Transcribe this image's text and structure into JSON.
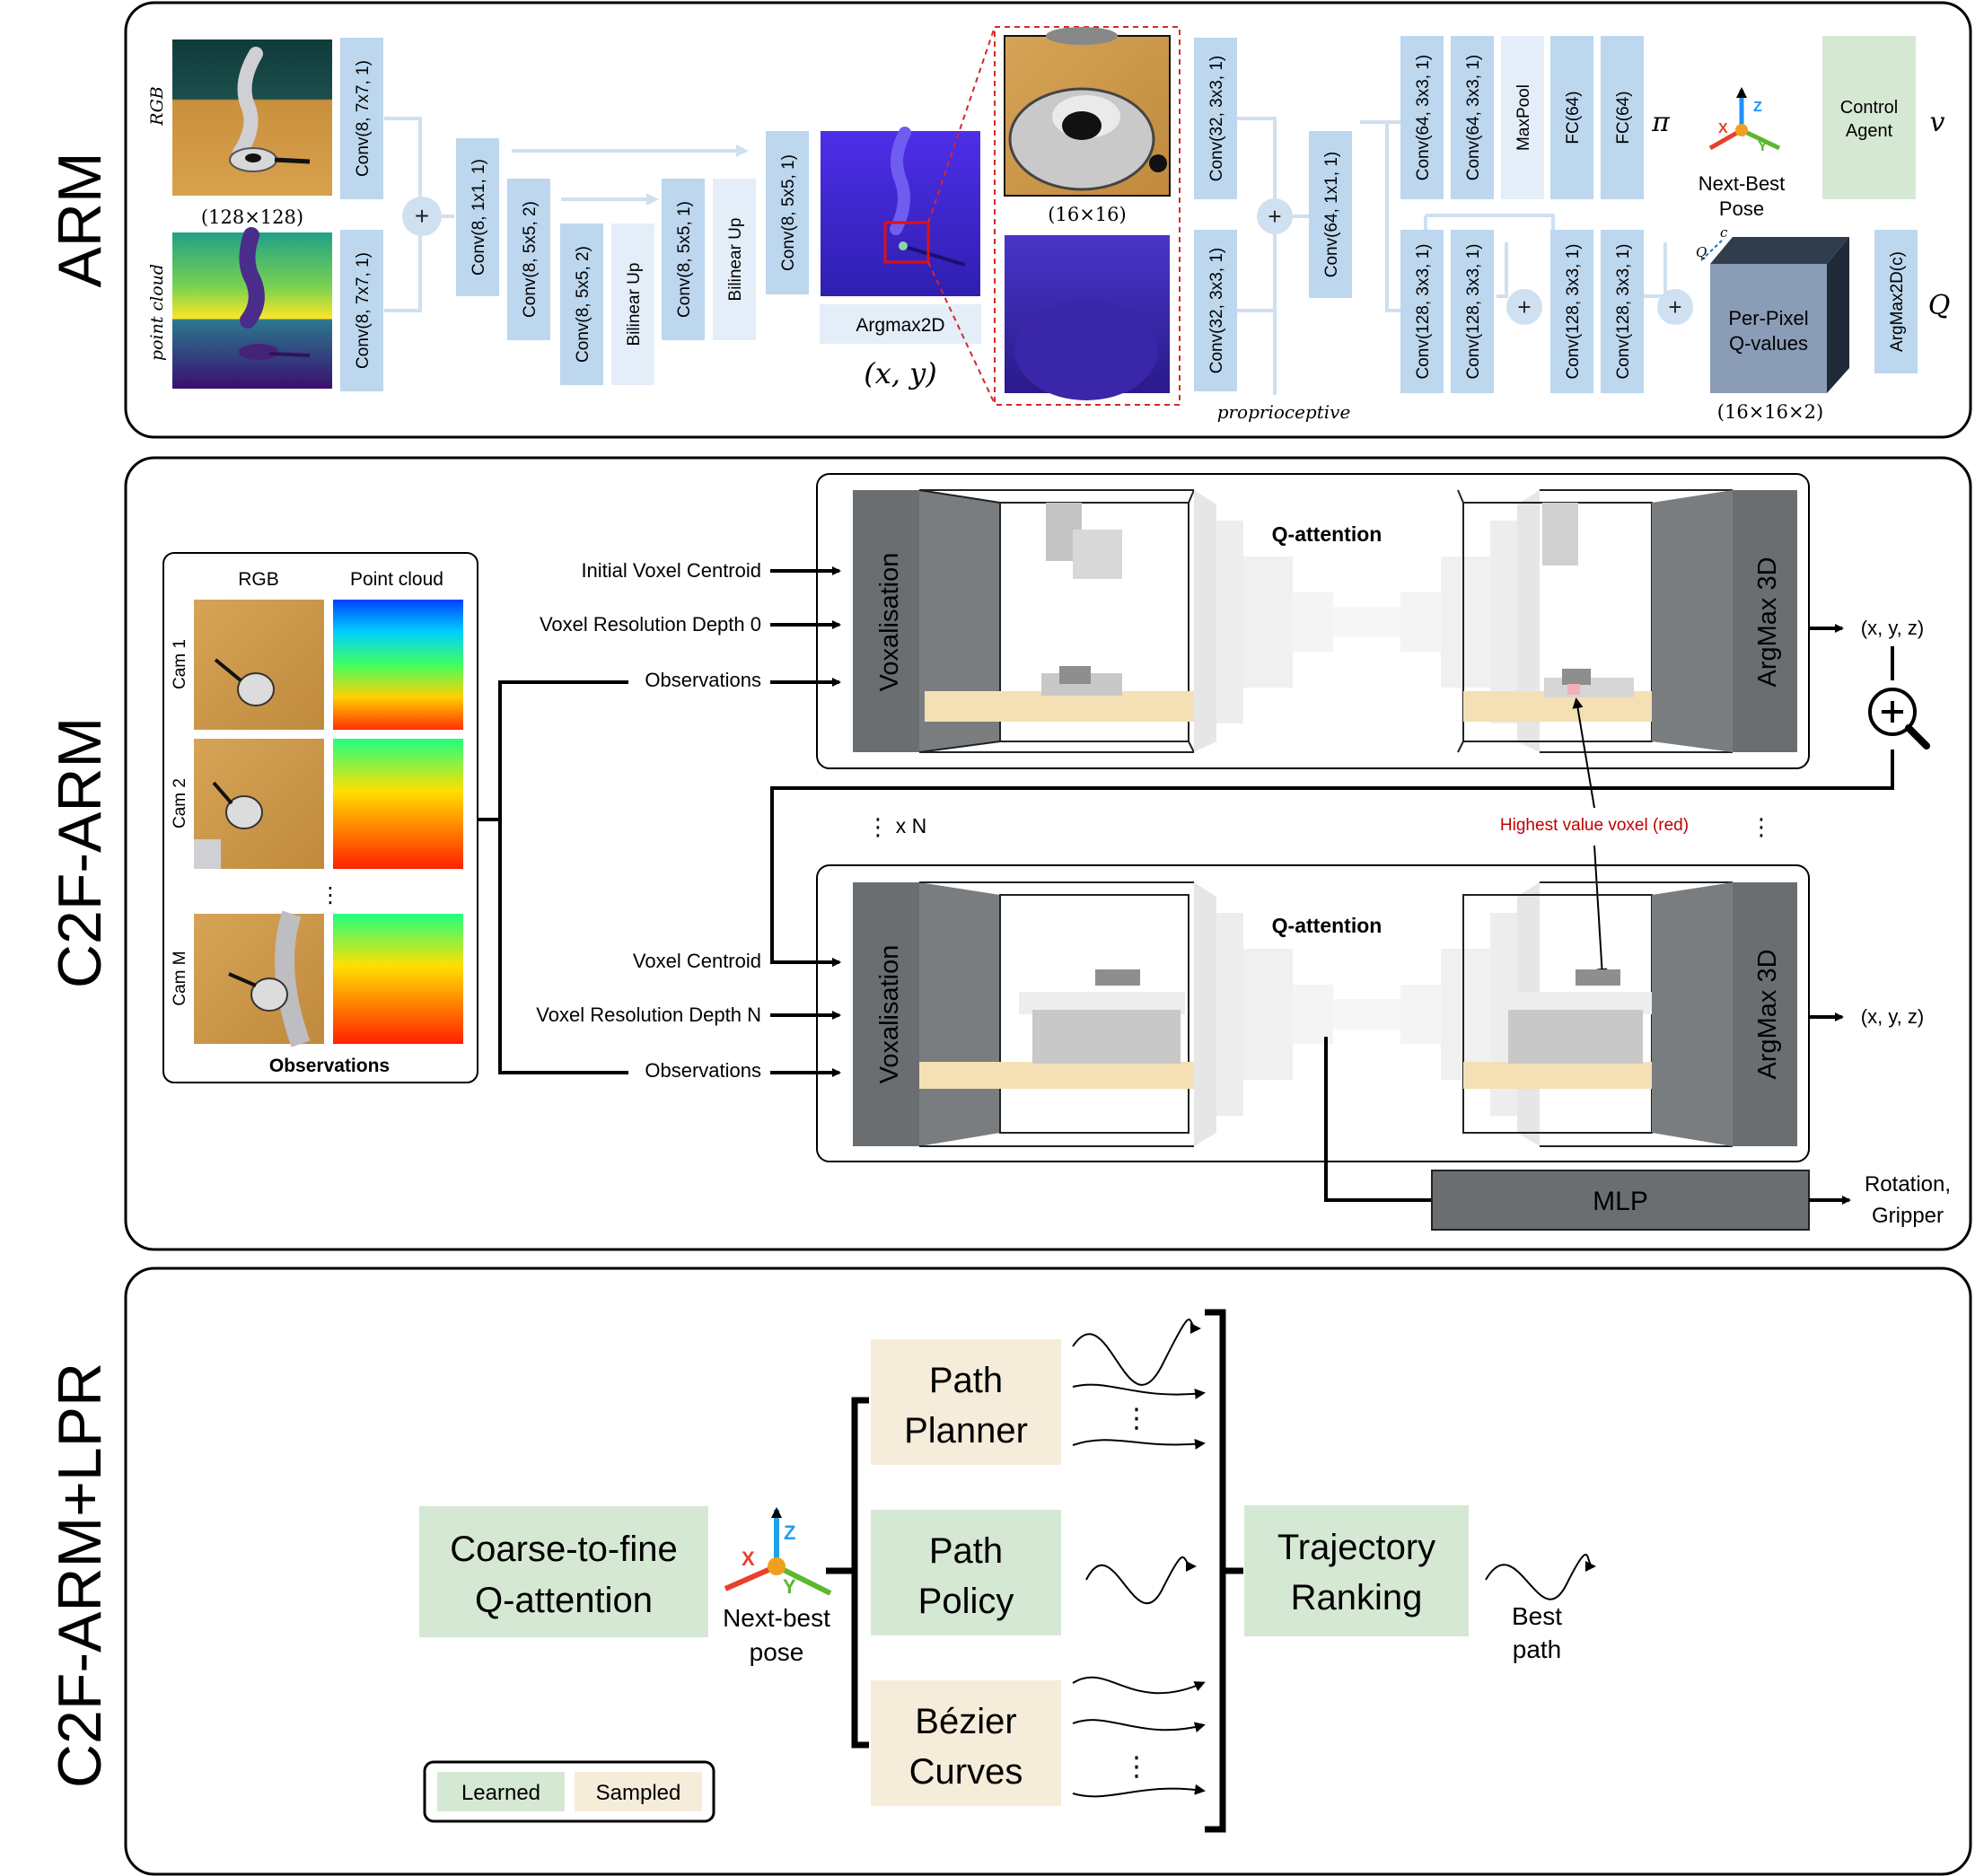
{
  "panels": {
    "arm": {
      "title": "ARM",
      "rgb_label": "RGB",
      "pc_label": "point cloud",
      "input_size": "(128×128)",
      "convs": {
        "rgb_conv": "Conv(8, 7x7, 1)",
        "pc_conv": "Conv(8, 7x7, 1)",
        "c1": "Conv(8, 1x1, 1)",
        "c2": "Conv(8, 5x5, 2)",
        "c3": "Conv(8, 5x5, 2)",
        "up1": "Bilinear Up",
        "c4": "Conv(8, 5x5, 1)",
        "up2": "Bilinear Up",
        "c5": "Conv(8, 5x5, 1)",
        "c6": "Conv(32, 3x3, 1)",
        "c7": "Conv(32, 3x3, 1)",
        "c8": "Conv(64, 1x1, 1)",
        "c9": "Conv(64, 3x3, 1)",
        "c10": "Conv(64, 3x3, 1)",
        "maxpool": "MaxPool",
        "fc1": "FC(64)",
        "fc2": "FC(64)",
        "q1": "Conv(128, 3x3, 1)",
        "q2": "Conv(128, 3x3, 1)",
        "q3": "Conv(128, 3x3, 1)",
        "q4": "Conv(128, 3x3, 1)",
        "argmax2dc": "ArgMax2D(c)"
      },
      "argmax2d": "Argmax2D",
      "xy": "(x, y)",
      "crop_size": "(16×16)",
      "proprioceptive": "proprioceptive",
      "pi": "π",
      "v": "v",
      "q": "Q",
      "next_best_pose": [
        "Next-Best",
        "Pose"
      ],
      "control_agent": [
        "Control",
        "Agent"
      ],
      "per_pixel": [
        "Per-Pixel",
        "Q-values"
      ],
      "qvol_size": "(16×16×2)",
      "cube_q": "Q",
      "cube_c": "c",
      "axis_x": "X",
      "axis_y": "Y",
      "axis_z": "Z"
    },
    "c2f": {
      "title": "C2F-ARM",
      "obs_headers": {
        "rgb": "RGB",
        "pc": "Point cloud"
      },
      "cams": [
        "Cam 1",
        "Cam 2",
        "Cam M"
      ],
      "dots": "⋮",
      "obs_caption": "Observations",
      "inputs_top": [
        "Initial Voxel Centroid",
        "Voxel Resolution Depth 0",
        "Observations"
      ],
      "inputs_bottom": [
        "Voxel Centroid",
        "Voxel Resolution Depth N",
        "Observations"
      ],
      "voxalisation": "Voxalisation",
      "q_attention": "Q-attention",
      "argmax3d": "ArgMax 3D",
      "xyz": "(x, y, z)",
      "xn": "x N",
      "highest": "Highest value voxel (red)",
      "mlp": "MLP",
      "rot_grip": [
        "Rotation,",
        "Gripper"
      ]
    },
    "lpr": {
      "title": "C2F-ARM+LPR",
      "c2f_box": [
        "Coarse-to-fine",
        "Q-attention"
      ],
      "next_best": [
        "Next-best",
        "pose"
      ],
      "path_planner": [
        "Path",
        "Planner"
      ],
      "path_policy": [
        "Path",
        "Policy"
      ],
      "bezier": [
        "Bézier",
        "Curves"
      ],
      "ranking": [
        "Trajectory",
        "Ranking"
      ],
      "best_path": [
        "Best",
        "path"
      ],
      "legend_learned": "Learned",
      "legend_sampled": "Sampled",
      "axis_x": "X",
      "axis_y": "Y",
      "axis_z": "Z",
      "dots": "⋮"
    }
  },
  "colors": {
    "conv_blue": "#bcd7ee",
    "light_blue": "#e4eef8",
    "learned_green": "#d5e8d4",
    "sampled_tan": "#f6ecda",
    "dark_gray": "#6b6e70",
    "sim_blue": "#4c2fe6",
    "red_dash": "#d62728"
  }
}
